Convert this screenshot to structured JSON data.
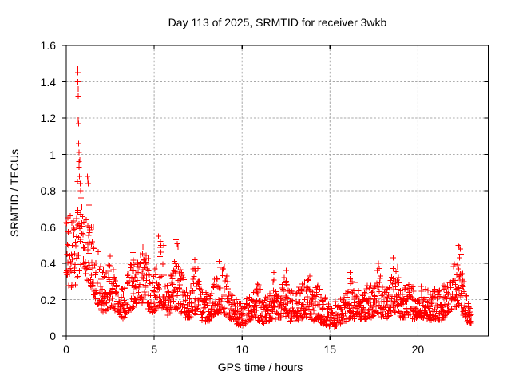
{
  "colors": {
    "background": "#ffffff",
    "marker": "#ff0000",
    "grid": "#a8a8a8",
    "border": "#000000",
    "text": "#000000"
  },
  "chart_data": {
    "type": "scatter",
    "title": "Day 113 of 2025, SRMTID for receiver 3wkb",
    "xlabel": "GPS time / hours",
    "ylabel": "SRMTID / TECUs",
    "series_name": "SRMTID",
    "marker": "plus",
    "marker_color": "#ff0000",
    "legend": "none",
    "grid": true,
    "xlim": [
      0,
      24
    ],
    "ylim": [
      0,
      1.6
    ],
    "xticks": [
      0,
      5,
      10,
      15,
      20
    ],
    "xtick_labels": [
      "0",
      "5",
      "10",
      "15",
      "20"
    ],
    "yticks": [
      0,
      0.2,
      0.4,
      0.6,
      0.8,
      1,
      1.2,
      1.4,
      1.6
    ],
    "ytick_labels": [
      "0",
      "0.2",
      "0.4",
      "0.6",
      "0.8",
      "1",
      "1.2",
      "1.4",
      "1.6"
    ],
    "x_data_range": [
      0,
      23.05
    ],
    "band_envelope_format": "[x_hours, y_min, y_max] of dense point cloud",
    "band_envelope": [
      [
        0,
        0.26,
        0.68
      ],
      [
        0.5,
        0.27,
        0.66
      ],
      [
        0.75,
        0.34,
        0.72
      ],
      [
        1.0,
        0.3,
        0.68
      ],
      [
        1.3,
        0.3,
        0.64
      ],
      [
        1.5,
        0.24,
        0.58
      ],
      [
        1.75,
        0.18,
        0.5
      ],
      [
        2.0,
        0.13,
        0.42
      ],
      [
        2.25,
        0.13,
        0.36
      ],
      [
        2.5,
        0.15,
        0.42
      ],
      [
        2.75,
        0.14,
        0.36
      ],
      [
        3.0,
        0.12,
        0.32
      ],
      [
        3.25,
        0.09,
        0.3
      ],
      [
        3.5,
        0.13,
        0.34
      ],
      [
        3.8,
        0.15,
        0.46
      ],
      [
        4.0,
        0.15,
        0.38
      ],
      [
        4.3,
        0.18,
        0.49
      ],
      [
        4.5,
        0.19,
        0.47
      ],
      [
        4.75,
        0.12,
        0.4
      ],
      [
        5.0,
        0.13,
        0.36
      ],
      [
        5.3,
        0.16,
        0.54
      ],
      [
        5.5,
        0.15,
        0.48
      ],
      [
        5.75,
        0.1,
        0.3
      ],
      [
        6.0,
        0.12,
        0.36
      ],
      [
        6.3,
        0.15,
        0.52
      ],
      [
        6.5,
        0.13,
        0.4
      ],
      [
        6.75,
        0.1,
        0.3
      ],
      [
        7.0,
        0.1,
        0.28
      ],
      [
        7.3,
        0.11,
        0.4
      ],
      [
        7.55,
        0.1,
        0.38
      ],
      [
        7.75,
        0.08,
        0.26
      ],
      [
        8.0,
        0.08,
        0.24
      ],
      [
        8.25,
        0.09,
        0.27
      ],
      [
        8.5,
        0.12,
        0.33
      ],
      [
        8.7,
        0.13,
        0.4
      ],
      [
        9.0,
        0.12,
        0.37
      ],
      [
        9.25,
        0.1,
        0.28
      ],
      [
        9.5,
        0.08,
        0.24
      ],
      [
        9.75,
        0.06,
        0.22
      ],
      [
        10.0,
        0.05,
        0.2
      ],
      [
        10.25,
        0.07,
        0.22
      ],
      [
        10.5,
        0.08,
        0.24
      ],
      [
        10.75,
        0.09,
        0.28
      ],
      [
        11.0,
        0.08,
        0.3
      ],
      [
        11.25,
        0.06,
        0.22
      ],
      [
        11.5,
        0.07,
        0.24
      ],
      [
        11.8,
        0.1,
        0.35
      ],
      [
        12.0,
        0.08,
        0.24
      ],
      [
        12.25,
        0.09,
        0.28
      ],
      [
        12.5,
        0.1,
        0.35
      ],
      [
        12.75,
        0.08,
        0.24
      ],
      [
        13.0,
        0.08,
        0.26
      ],
      [
        13.25,
        0.09,
        0.28
      ],
      [
        13.5,
        0.1,
        0.3
      ],
      [
        13.85,
        0.1,
        0.33
      ],
      [
        14.0,
        0.08,
        0.26
      ],
      [
        14.3,
        0.09,
        0.29
      ],
      [
        14.5,
        0.07,
        0.24
      ],
      [
        14.75,
        0.06,
        0.22
      ],
      [
        15.0,
        0.05,
        0.2
      ],
      [
        15.25,
        0.05,
        0.19
      ],
      [
        15.5,
        0.06,
        0.21
      ],
      [
        15.75,
        0.07,
        0.22
      ],
      [
        16.0,
        0.08,
        0.26
      ],
      [
        16.15,
        0.1,
        0.35
      ],
      [
        16.4,
        0.09,
        0.3
      ],
      [
        16.75,
        0.08,
        0.26
      ],
      [
        17.0,
        0.09,
        0.26
      ],
      [
        17.25,
        0.1,
        0.3
      ],
      [
        17.5,
        0.1,
        0.28
      ],
      [
        17.75,
        0.12,
        0.4
      ],
      [
        18.0,
        0.1,
        0.28
      ],
      [
        18.25,
        0.09,
        0.28
      ],
      [
        18.6,
        0.13,
        0.43
      ],
      [
        18.85,
        0.13,
        0.38
      ],
      [
        19.0,
        0.1,
        0.28
      ],
      [
        19.25,
        0.1,
        0.28
      ],
      [
        19.5,
        0.11,
        0.3
      ],
      [
        19.75,
        0.09,
        0.26
      ],
      [
        20.0,
        0.1,
        0.26
      ],
      [
        20.25,
        0.1,
        0.28
      ],
      [
        20.5,
        0.09,
        0.27
      ],
      [
        20.75,
        0.08,
        0.26
      ],
      [
        21.0,
        0.09,
        0.26
      ],
      [
        21.25,
        0.08,
        0.26
      ],
      [
        21.5,
        0.1,
        0.3
      ],
      [
        21.75,
        0.13,
        0.32
      ],
      [
        22.0,
        0.15,
        0.38
      ],
      [
        22.35,
        0.17,
        0.5
      ],
      [
        22.55,
        0.12,
        0.36
      ],
      [
        22.75,
        0.08,
        0.26
      ],
      [
        22.95,
        0.06,
        0.18
      ],
      [
        23.05,
        0.07,
        0.15
      ]
    ],
    "outlier_points": [
      [
        0.02,
        0.62
      ],
      [
        0.05,
        0.45
      ],
      [
        0.1,
        0.65
      ],
      [
        0.63,
        0.85
      ],
      [
        0.65,
        1.47
      ],
      [
        0.65,
        1.4
      ],
      [
        0.66,
        1.45
      ],
      [
        0.67,
        1.36
      ],
      [
        0.68,
        1.32
      ],
      [
        0.68,
        1.19
      ],
      [
        0.7,
        1.17
      ],
      [
        0.7,
        1.06
      ],
      [
        0.72,
        1.01
      ],
      [
        0.72,
        0.96
      ],
      [
        0.73,
        0.93
      ],
      [
        0.75,
        0.88
      ],
      [
        0.78,
        0.97
      ],
      [
        0.8,
        0.84
      ],
      [
        0.82,
        0.8
      ],
      [
        0.85,
        0.76
      ],
      [
        0.88,
        0.71
      ],
      [
        1.2,
        0.88
      ],
      [
        1.22,
        0.86
      ],
      [
        1.24,
        0.84
      ],
      [
        1.3,
        0.72
      ],
      [
        1.55,
        0.6
      ],
      [
        2.5,
        0.44
      ],
      [
        3.8,
        0.46
      ],
      [
        4.35,
        0.49
      ],
      [
        5.25,
        0.55
      ],
      [
        5.35,
        0.52
      ],
      [
        5.55,
        0.5
      ],
      [
        6.25,
        0.53
      ],
      [
        6.35,
        0.49
      ],
      [
        7.3,
        0.42
      ],
      [
        8.7,
        0.41
      ],
      [
        9.0,
        0.38
      ],
      [
        11.8,
        0.35
      ],
      [
        12.5,
        0.36
      ],
      [
        13.85,
        0.33
      ],
      [
        16.15,
        0.35
      ],
      [
        17.75,
        0.4
      ],
      [
        18.6,
        0.43
      ],
      [
        18.85,
        0.38
      ],
      [
        22.3,
        0.5
      ],
      [
        22.35,
        0.49
      ],
      [
        22.4,
        0.48
      ],
      [
        22.45,
        0.45
      ]
    ]
  }
}
